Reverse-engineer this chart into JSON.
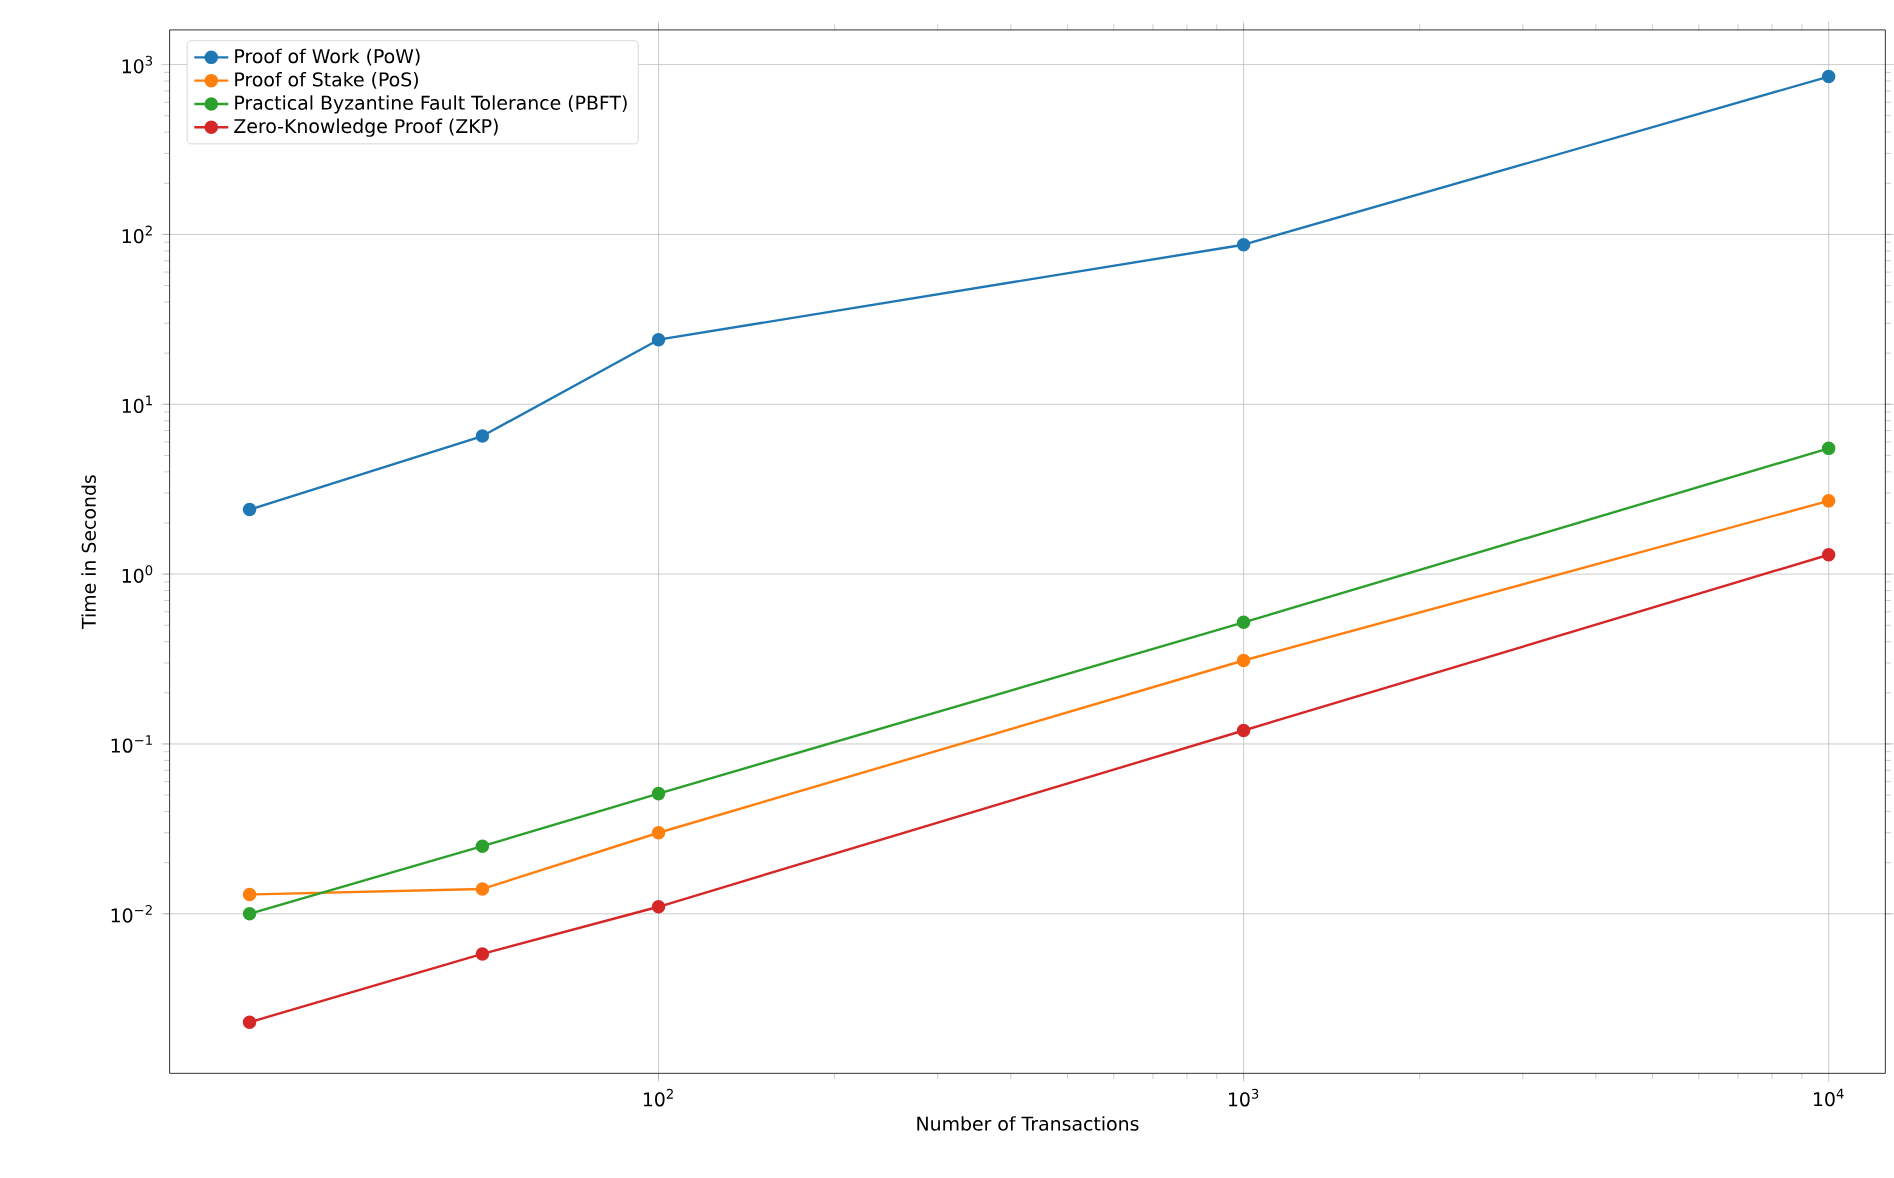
{
  "chart_data": {
    "type": "line",
    "xlabel": "Number of Transactions",
    "ylabel": "Time in Seconds",
    "log": "xy",
    "grid": true,
    "legend": "top left",
    "marker": "circle",
    "line_style": "solid",
    "x": [
      20,
      50,
      100,
      1000,
      10000
    ],
    "xlim": [
      14.6,
      12500
    ],
    "ylim": [
      0.00115,
      1600
    ],
    "xticks": [
      {
        "value": 100,
        "label": "10$^{2}$"
      },
      {
        "value": 1000,
        "label": "10$^{3}$"
      },
      {
        "value": 10000,
        "label": "10$^{4}$"
      }
    ],
    "yticks": [
      {
        "value": 0.01,
        "label": "10$^{−2}$"
      },
      {
        "value": 0.1,
        "label": "10$^{−1}$"
      },
      {
        "value": 1,
        "label": "10$^{0}$"
      },
      {
        "value": 10,
        "label": "10$^{1}$"
      },
      {
        "value": 100,
        "label": "10$^{2}$"
      },
      {
        "value": 1000,
        "label": "10$^{3}$"
      }
    ],
    "series": [
      {
        "name": "Proof of Work (PoW)",
        "color": "#1f77b4",
        "values": [
          2.4,
          6.5,
          24,
          87,
          850
        ]
      },
      {
        "name": "Proof of Stake (PoS)",
        "color": "#ff7f0e",
        "values": [
          0.013,
          0.014,
          0.03,
          0.31,
          2.7
        ]
      },
      {
        "name": "Practical Byzantine Fault Tolerance (PBFT)",
        "color": "#2ca02c",
        "values": [
          0.01,
          0.025,
          0.051,
          0.52,
          5.5
        ]
      },
      {
        "name": "Zero-Knowledge Proof (ZKP)",
        "color": "#d62728",
        "values": [
          0.0023,
          0.0058,
          0.011,
          0.12,
          1.3
        ]
      }
    ]
  }
}
